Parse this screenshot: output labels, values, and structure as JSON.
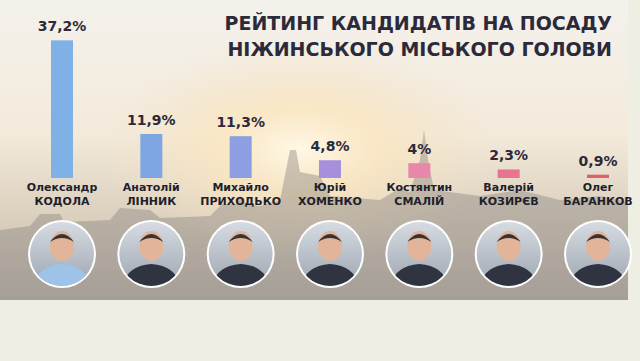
{
  "chart_data": {
    "type": "bar",
    "title": "РЕЙТИНГ КАНДИДАТІВ НА ПОСАДУ НІЖИНСЬКОГО МІСЬКОГО ГОЛОВИ",
    "categories": [
      "Олександр КОДОЛА",
      "Анатолій ЛІННИК",
      "Михайло ПРИХОДЬКО",
      "Юрій ХОМЕНКО",
      "Костянтин СМАЛІЙ",
      "Валерій КОЗИРЄВ",
      "Олег БАРАНКОВ"
    ],
    "values": [
      37.2,
      11.9,
      11.3,
      4.8,
      4,
      2.3,
      0.9
    ],
    "value_labels": [
      "37,2%",
      "11,9%",
      "11,3%",
      "4,8%",
      "4%",
      "2,3%",
      "0,9%"
    ],
    "colors": [
      "#7fb1e6",
      "#7ea6e3",
      "#8d9fe2",
      "#a690dc",
      "#e887a9",
      "#e8748f",
      "#e2606c"
    ],
    "ylim": [
      0,
      40
    ],
    "data_labels": true,
    "tick_labels": false
  }
}
